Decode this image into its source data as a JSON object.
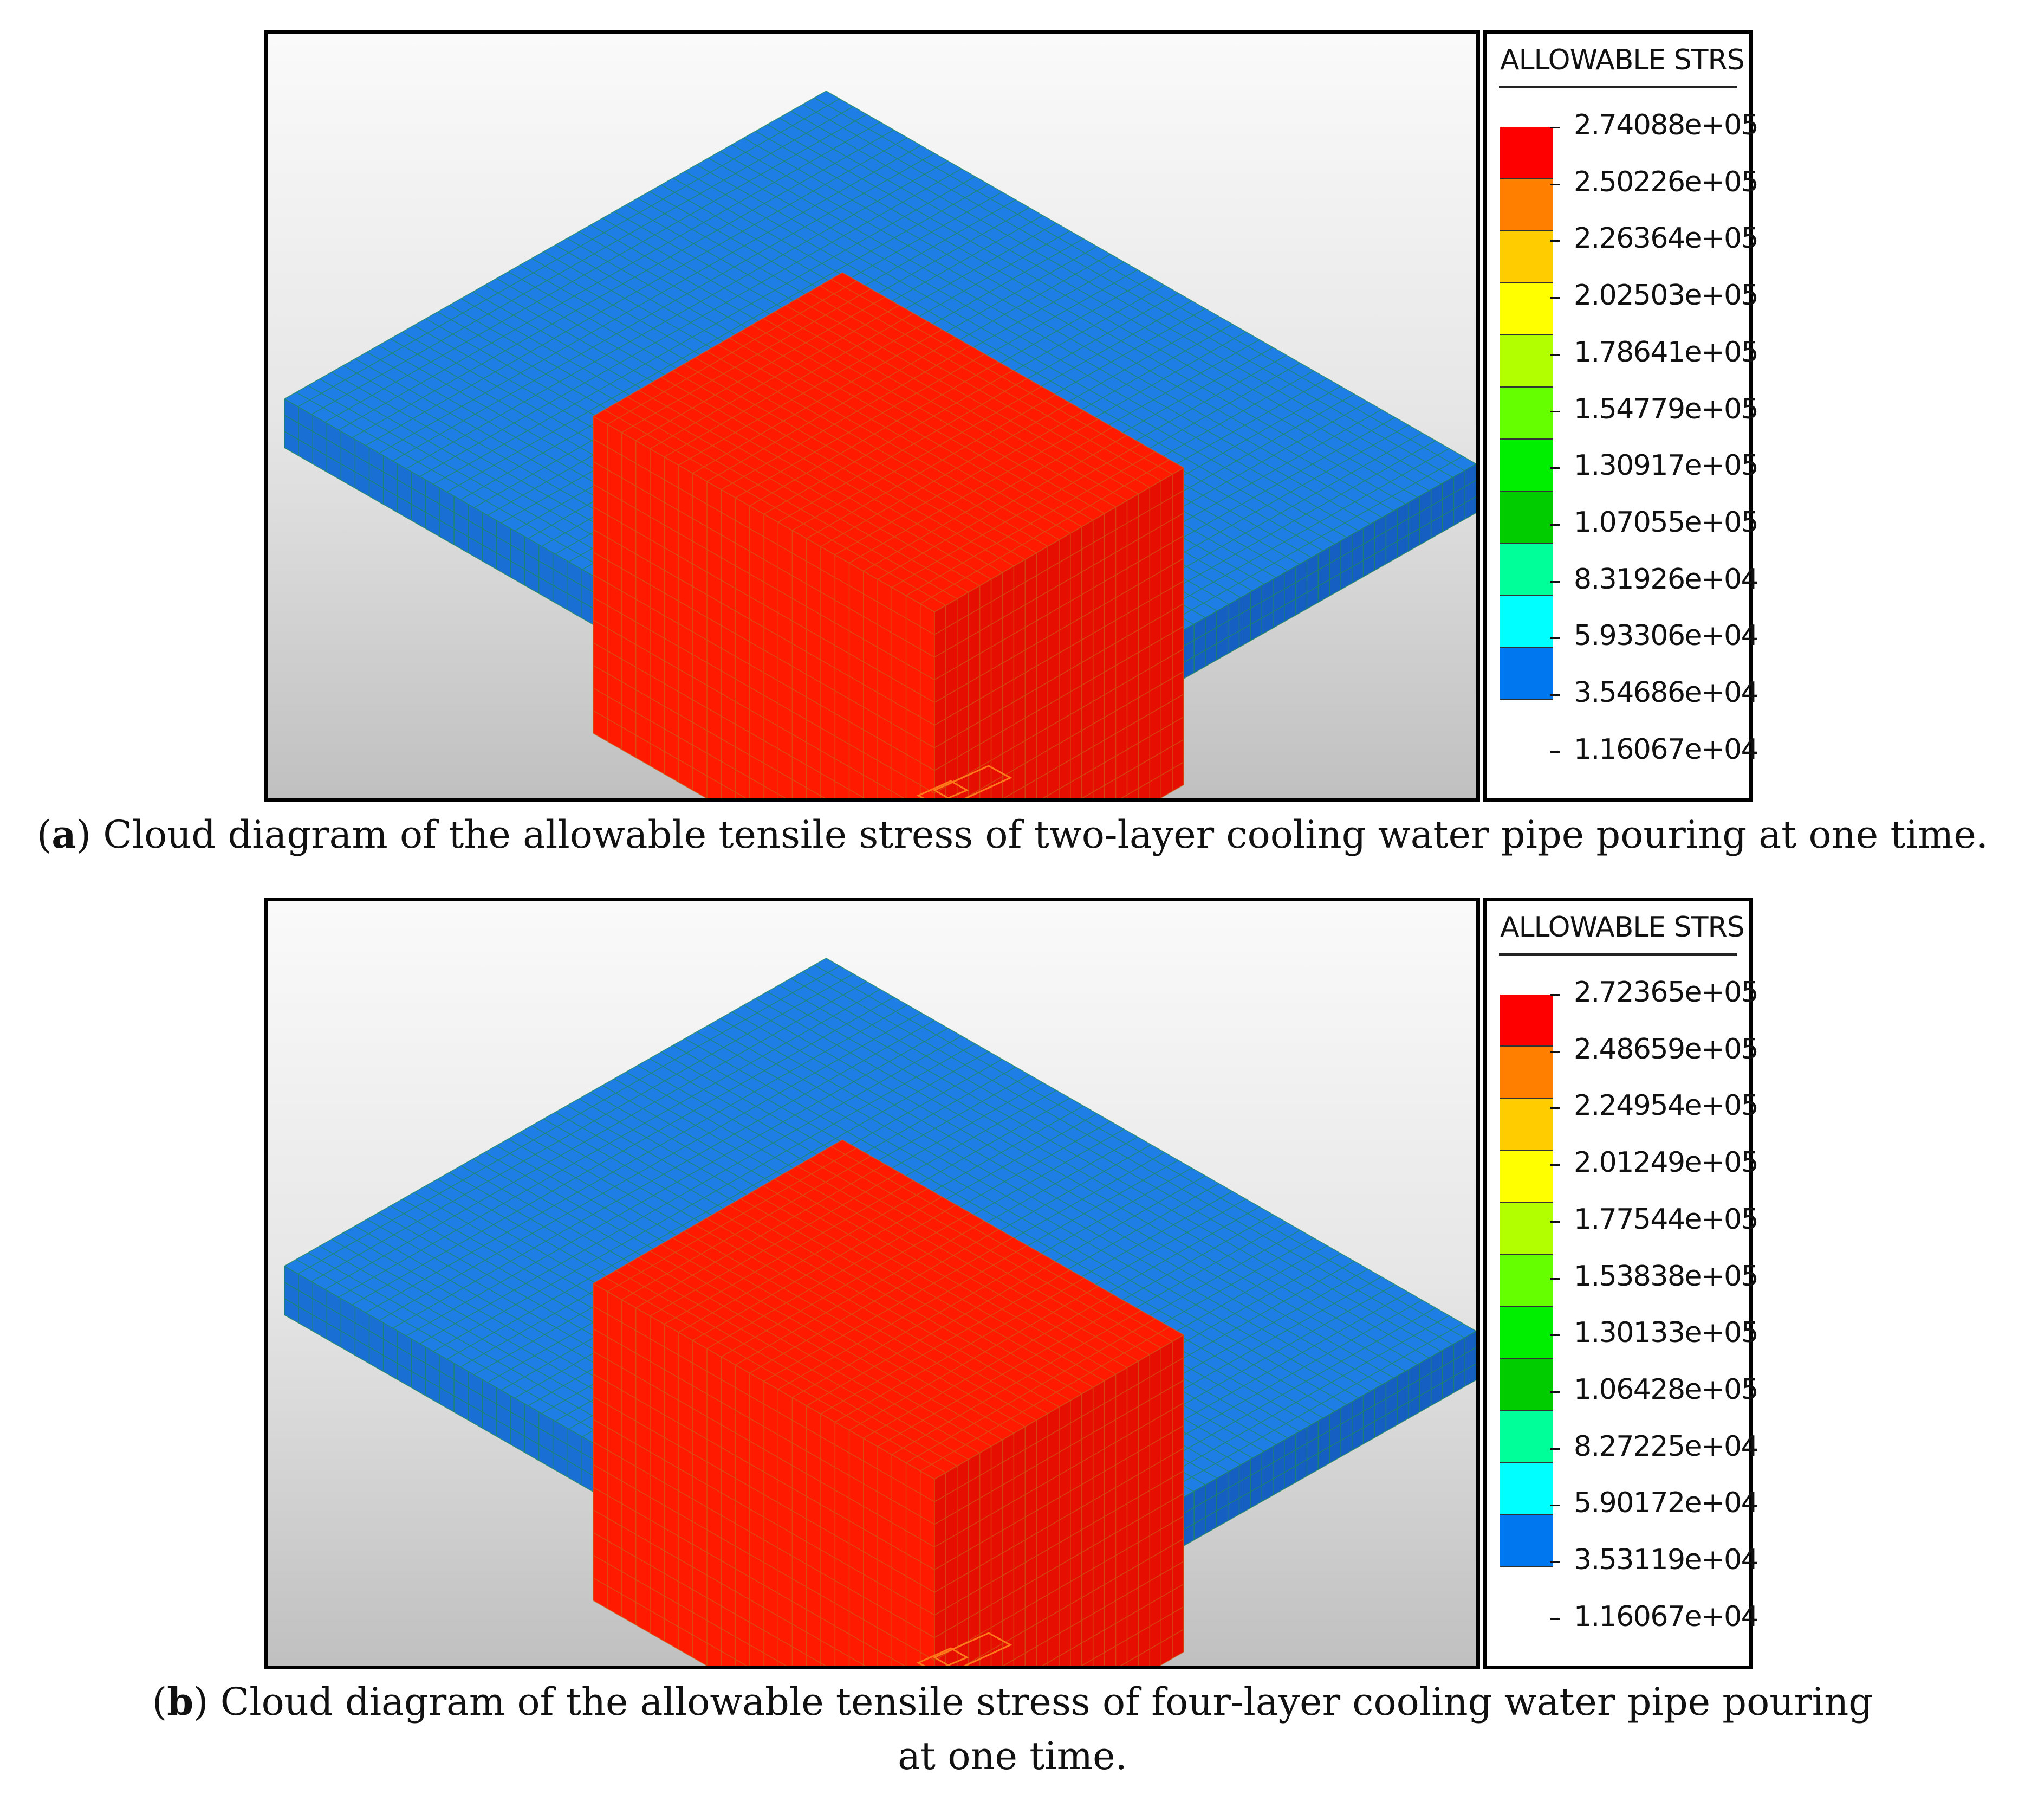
{
  "panels": [
    {
      "legend": {
        "title": "ALLOWABLE STRS",
        "labels": [
          "2.74088e+05",
          "2.50226e+05",
          "2.26364e+05",
          "2.02503e+05",
          "1.78641e+05",
          "1.54779e+05",
          "1.30917e+05",
          "1.07055e+05",
          "8.31926e+04",
          "5.93306e+04",
          "3.54686e+04",
          "1.16067e+04"
        ]
      },
      "caption": {
        "letter": "a",
        "text": " Cloud diagram of the allowable tensile stress of two-layer cooling water pipe pouring at one time."
      }
    },
    {
      "legend": {
        "title": "ALLOWABLE STRS",
        "labels": [
          "2.72365e+05",
          "2.48659e+05",
          "2.24954e+05",
          "2.01249e+05",
          "1.77544e+05",
          "1.53838e+05",
          "1.30133e+05",
          "1.06428e+05",
          "8.27225e+04",
          "5.90172e+04",
          "3.53119e+04",
          "1.16067e+04"
        ]
      },
      "caption": {
        "letter": "b",
        "text": " Cloud diagram of the allowable tensile stress of four-layer cooling water pipe pouring at one time."
      }
    }
  ],
  "legend_colors": [
    "#ff0000",
    "#ff7f00",
    "#ffcc00",
    "#ffff00",
    "#b2ff00",
    "#66ff00",
    "#00ee00",
    "#00cc00",
    "#00ff99",
    "#00ffff",
    "#0077ee"
  ],
  "model_colors": {
    "slab_top": "#1e7ee6",
    "slab_side_front": "#1a6fd4",
    "slab_side_right": "#155fc2",
    "block": "#ff1a00",
    "block_shade": "#e60e00",
    "mesh_blue": "#1f8a5a",
    "mesh_red": "#c86a1a"
  }
}
